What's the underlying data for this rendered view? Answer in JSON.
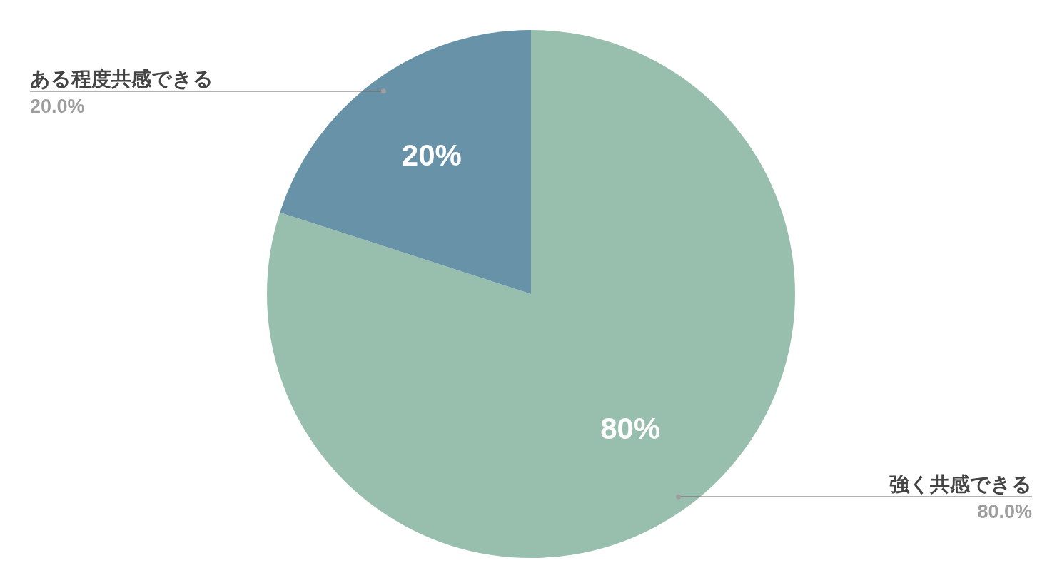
{
  "chart_data": {
    "type": "pie",
    "categories": [
      "強く共感できる",
      "ある程度共感できる"
    ],
    "values": [
      80,
      20
    ],
    "colors": [
      "#98bfad",
      "#6792a7"
    ],
    "value_labels": [
      "80%",
      "20%"
    ],
    "annotations": [
      "80.0%",
      "20.0%"
    ],
    "legend": false
  }
}
